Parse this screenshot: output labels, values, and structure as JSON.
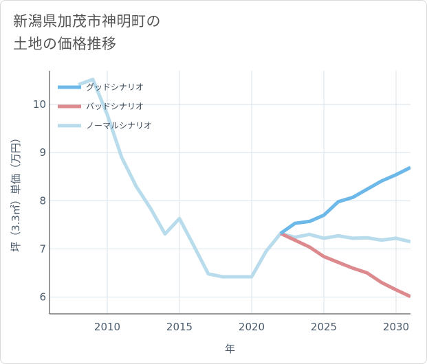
{
  "title": {
    "line1": "新潟県加茂市神明町の",
    "line2": "土地の価格推移"
  },
  "colors": {
    "good": "#6cb8e8",
    "bad": "#dd8a8f",
    "normal": "#b9dcec",
    "grid": "#d7e2ea",
    "axis": "#4a5a6a"
  },
  "chart_data": {
    "type": "line",
    "xlabel": "年",
    "ylabel": "坪（3.3㎡）単価（万円）",
    "xlim": [
      2006,
      2031
    ],
    "ylim": [
      5.65,
      10.7
    ],
    "xticks": [
      2010,
      2015,
      2020,
      2025,
      2030
    ],
    "yticks": [
      6,
      7,
      8,
      9,
      10
    ],
    "legend_position": "top-left",
    "grid": true,
    "series": [
      {
        "name": "グッドシナリオ",
        "key": "good",
        "x": [
          2022,
          2023,
          2024,
          2025,
          2026,
          2027,
          2028,
          2029,
          2030,
          2031
        ],
        "y": [
          7.32,
          7.53,
          7.57,
          7.7,
          7.98,
          8.07,
          8.24,
          8.41,
          8.54,
          8.69
        ]
      },
      {
        "name": "バッドシナリオ",
        "key": "bad",
        "x": [
          2022,
          2023,
          2024,
          2025,
          2026,
          2027,
          2028,
          2029,
          2030,
          2031
        ],
        "y": [
          7.32,
          7.18,
          7.04,
          6.84,
          6.72,
          6.6,
          6.5,
          6.3,
          6.15,
          6.01
        ]
      },
      {
        "name": "ノーマルシナリオ",
        "key": "normal",
        "x": [
          2008,
          2009,
          2010,
          2011,
          2012,
          2013,
          2014,
          2015,
          2016,
          2017,
          2018,
          2019,
          2020,
          2021,
          2022,
          2023,
          2024,
          2025,
          2026,
          2027,
          2028,
          2029,
          2030,
          2031
        ],
        "y": [
          10.41,
          10.52,
          9.79,
          8.9,
          8.3,
          7.84,
          7.31,
          7.63,
          7.06,
          6.48,
          6.42,
          6.42,
          6.42,
          6.95,
          7.32,
          7.24,
          7.3,
          7.22,
          7.27,
          7.22,
          7.23,
          7.18,
          7.22,
          7.15
        ]
      }
    ]
  }
}
